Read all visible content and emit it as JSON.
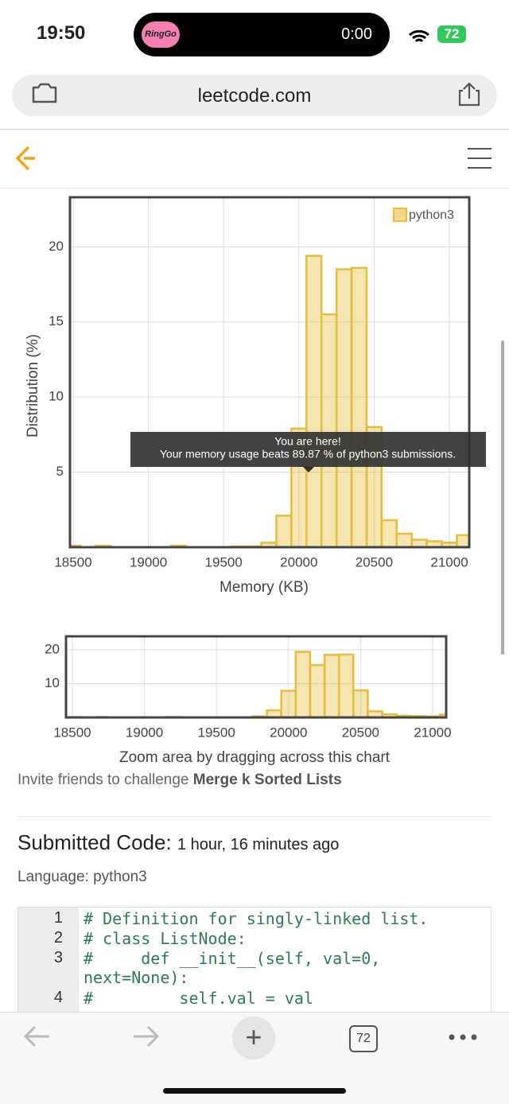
{
  "status_bar": {
    "time": "19:50",
    "activity": "RingGo",
    "timer": "0:00",
    "battery": "72"
  },
  "browser": {
    "url": "leetcode.com",
    "tab_count": "72"
  },
  "chart_data": {
    "type": "histogram",
    "y_label": "Distribution (%)",
    "x_label": "Memory (KB)",
    "bins": [
      18450,
      18550,
      18650,
      18750,
      18850,
      18950,
      19050,
      19150,
      19250,
      19350,
      19450,
      19550,
      19650,
      19750,
      19850,
      19950,
      20050,
      20150,
      20250,
      20350,
      20450,
      20550,
      20650,
      20750,
      20850,
      20950,
      21050,
      21150
    ],
    "series": [
      {
        "name": "python3",
        "color": "#e6bd3c",
        "values": [
          0.1,
          0,
          0.1,
          0,
          0,
          0,
          0,
          0.1,
          0,
          0,
          0,
          0.05,
          0.05,
          0.3,
          2.1,
          7.9,
          19.4,
          15.5,
          18.5,
          18.6,
          8.0,
          1.8,
          0.9,
          0.5,
          0.4,
          0.3,
          0.8
        ]
      }
    ],
    "xlim": [
      18479,
      21132
    ],
    "ylim": [
      0,
      23.3
    ],
    "xticks": [
      18500,
      19000,
      19500,
      20000,
      20500,
      21000
    ],
    "yticks": [
      5,
      10,
      15,
      20
    ],
    "grid": true,
    "legend": "top-right",
    "tooltip": [
      "You are here!",
      "Your memory usage beats 89.87 % of python3 submissions."
    ]
  },
  "zoom_chart": {
    "xlim": [
      18456,
      21094
    ],
    "ylim": [
      0,
      24
    ],
    "yticks": [
      10,
      20
    ],
    "caption": "Zoom area by dragging across this chart"
  },
  "invite": {
    "text": "Invite friends to challenge",
    "problem": "Merge k Sorted Lists"
  },
  "submission": {
    "heading": "Submitted Code:",
    "time": "1 hour, 16 minutes ago",
    "language": "Language: python3"
  },
  "code": {
    "lines": [
      {
        "number": 1,
        "text": "# Definition for singly-linked list."
      },
      {
        "number": 2,
        "text": "# class ListNode:"
      },
      {
        "number": 3,
        "text": "#     def __init__(self, val=0, next=None):"
      },
      {
        "number": 4,
        "text": "#         self.val = val"
      }
    ]
  }
}
